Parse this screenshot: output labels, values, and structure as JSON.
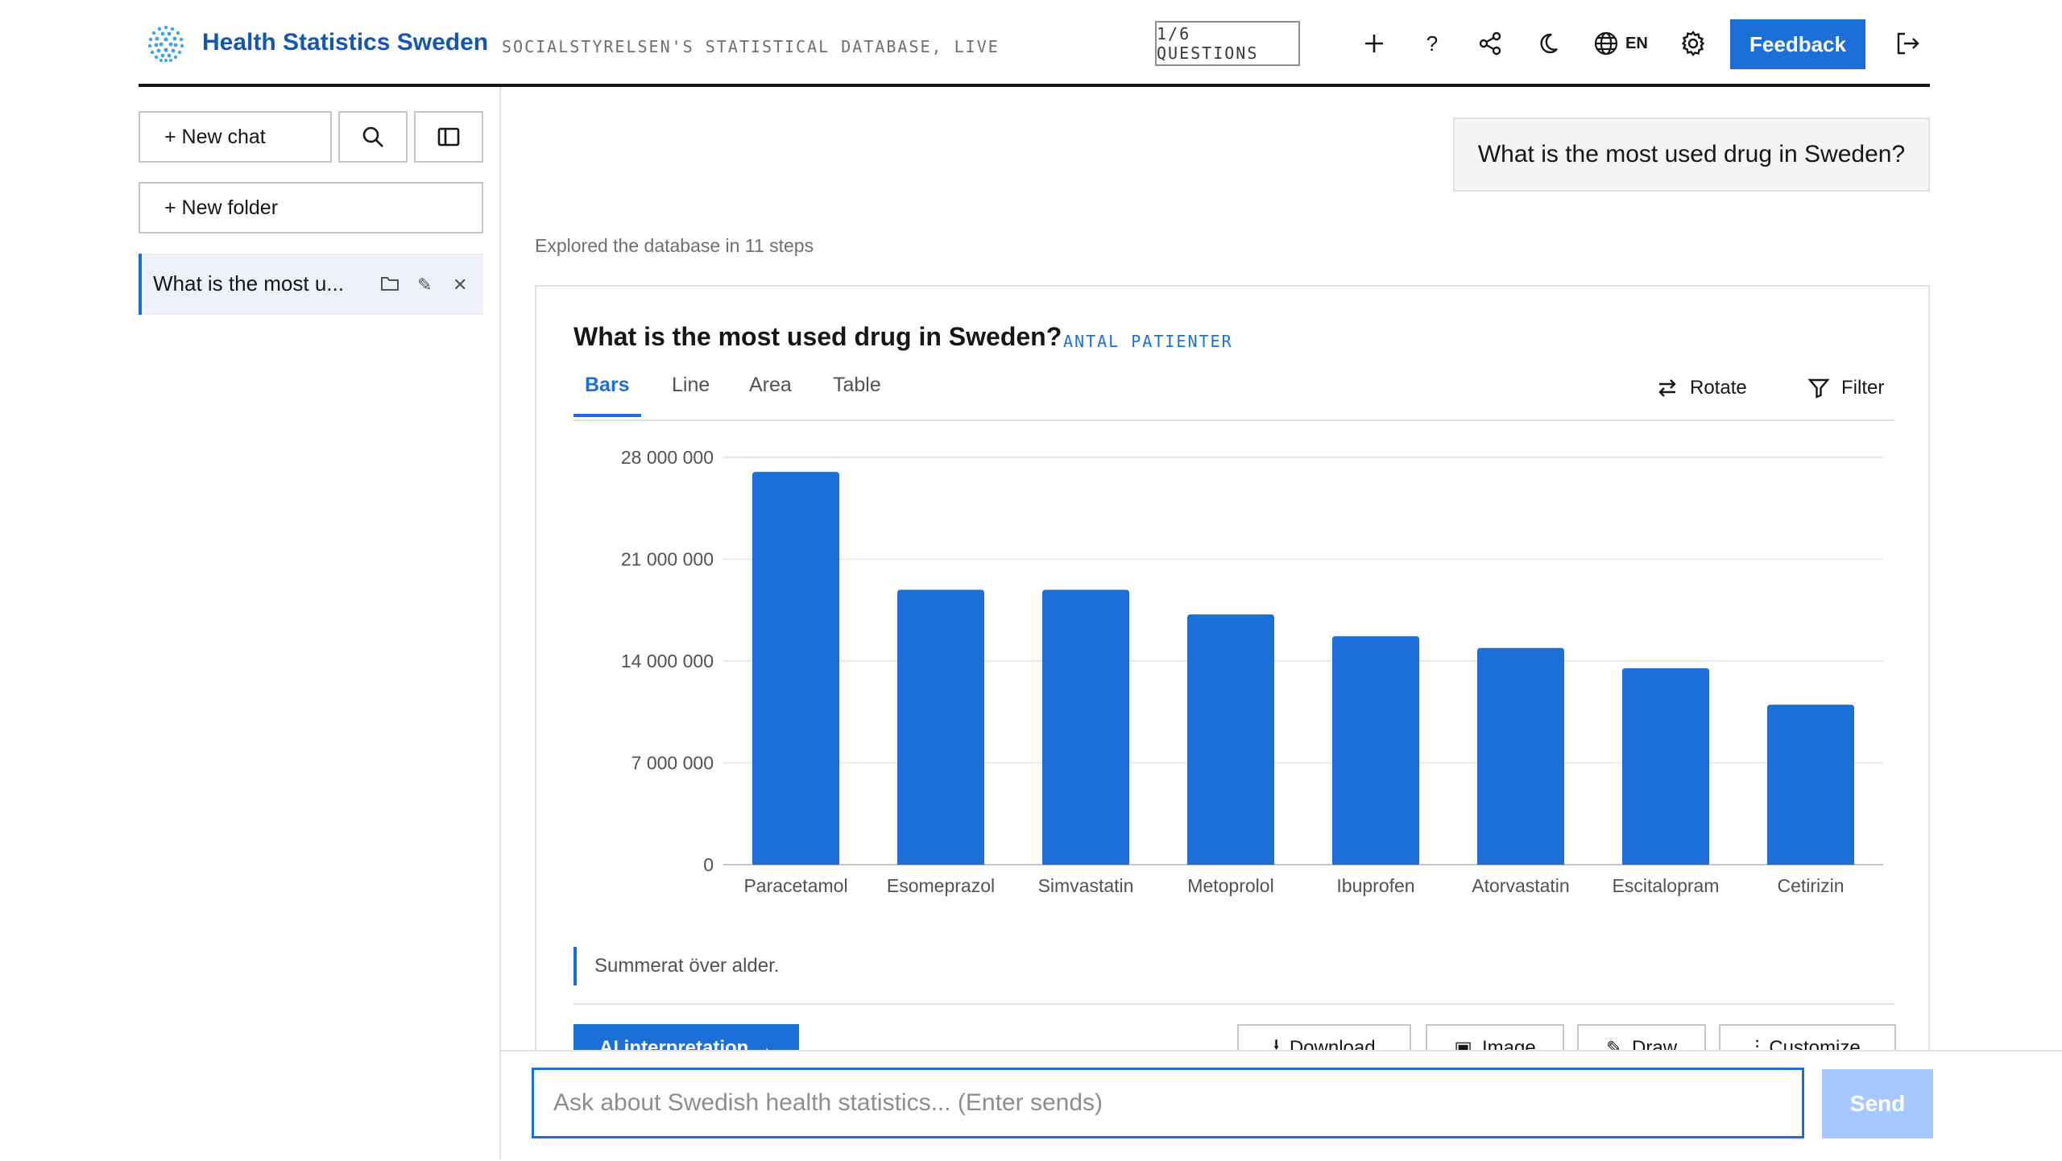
{
  "header": {
    "brand": "Health Statistics Sweden",
    "subtitle": "SOCIALSTYRELSEN'S STATISTICAL DATABASE, LIVE",
    "questions": "1/6 QUESTIONS",
    "language": "EN",
    "feedback_label": "Feedback",
    "icons": [
      "plus-icon",
      "help-icon",
      "share-icon",
      "moon-icon",
      "globe-icon",
      "gear-icon",
      "logout-icon"
    ]
  },
  "sidebar": {
    "new_chat": "+ New chat",
    "new_folder": "+ New folder",
    "chats": [
      {
        "title": "What is the most u..."
      }
    ]
  },
  "conversation": {
    "user_message": "What is the most used drug in Sweden?",
    "explored": "Explored the database in 11 steps"
  },
  "card": {
    "title": "What is the most used drug in Sweden?",
    "subtitle": "ANTAL PATIENTER",
    "tabs": [
      "Bars",
      "Line",
      "Area",
      "Table"
    ],
    "active_tab": "Bars",
    "rotate": "Rotate",
    "filter": "Filter",
    "note": "Summerat över alder.",
    "ai_button": "AI interpretation →",
    "actions": [
      "Download",
      "Image",
      "Draw",
      "Customize"
    ]
  },
  "chart_data": {
    "type": "bar",
    "categories": [
      "Paracetamol",
      "Esomeprazol",
      "Simvastatin",
      "Metoprolol",
      "Ibuprofen",
      "Atorvastatin",
      "Escitalopram",
      "Cetirizin"
    ],
    "values": [
      27000000,
      18900000,
      18900000,
      17200000,
      15700000,
      14900000,
      13500000,
      11000000
    ],
    "yticks": [
      0,
      7000000,
      14000000,
      21000000,
      28000000
    ],
    "ytick_labels": [
      "0",
      "7 000 000",
      "14 000 000",
      "21 000 000",
      "28 000 000"
    ],
    "ylim": [
      0,
      28000000
    ],
    "grid": true,
    "bar_color": "#1c6fd6"
  },
  "input": {
    "placeholder": "Ask about Swedish health statistics... (Enter sends)",
    "send_label": "Send"
  },
  "colors": {
    "accent": "#1c6fd6",
    "send_disabled": "#a6c8ff"
  }
}
